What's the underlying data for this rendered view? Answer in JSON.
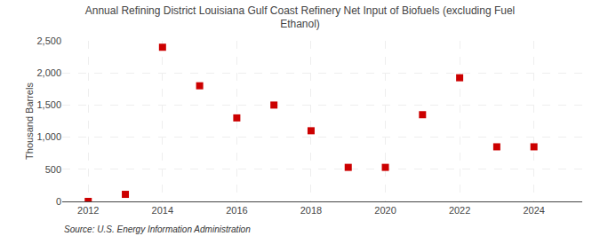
{
  "chart_data": {
    "type": "scatter",
    "title": "Annual Refining District Louisiana Gulf Coast Refinery Net Input of Biofuels (excluding Fuel\nEthanol)",
    "ylabel": "Thousand Barrels",
    "annotations": [
      "Source: U.S. Energy Information Administration"
    ],
    "x": [
      2012,
      2013,
      2014,
      2015,
      2016,
      2017,
      2018,
      2019,
      2020,
      2021,
      2022,
      2023,
      2024
    ],
    "values": [
      0,
      110,
      2400,
      1800,
      1300,
      1500,
      1100,
      530,
      530,
      1350,
      1925,
      850,
      850
    ],
    "color": "#cc0000",
    "marker": "square",
    "xlim": [
      2011.3,
      2025.3
    ],
    "xticks": [
      2012,
      2014,
      2016,
      2018,
      2020,
      2022,
      2024
    ],
    "ylim": [
      0,
      2500
    ],
    "yticks": [
      0,
      500,
      {
        "value": 1000,
        "label": "1,000"
      },
      {
        "value": 1500,
        "label": "1,500"
      },
      {
        "value": 2000,
        "label": "2,000"
      },
      {
        "value": 2500,
        "label": "2,500"
      }
    ],
    "grid": true
  }
}
